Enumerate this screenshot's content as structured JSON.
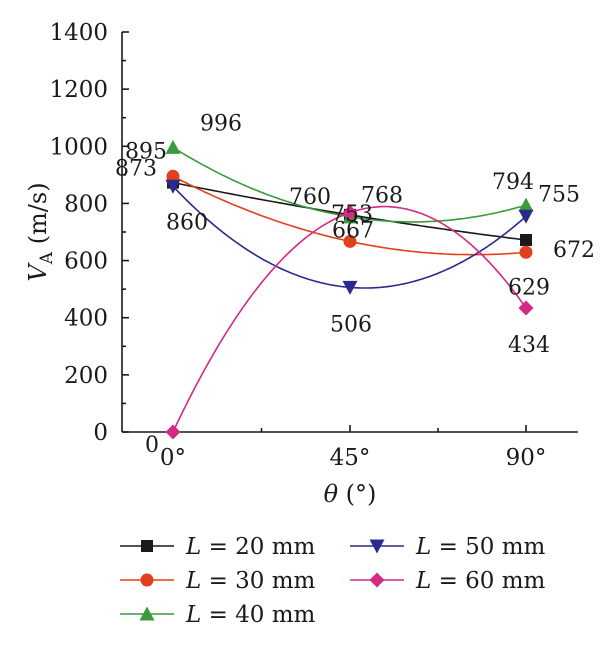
{
  "chart_data": {
    "type": "line",
    "categories": [
      "0°",
      "45°",
      "90°"
    ],
    "xlabel": "θ (°)",
    "xlabel_var": "θ",
    "xlabel_unit": " (°)",
    "ylabel": "VA (m/s)",
    "ylabel_var": "V",
    "ylabel_sub": "A",
    "ylabel_unit": " (m/s)",
    "ylim": [
      0,
      1400
    ],
    "yticks": [
      0,
      200,
      400,
      600,
      800,
      1000,
      1200,
      1400
    ],
    "smooth": true,
    "legend_position": "bottom",
    "series": [
      {
        "name": "L = 20 mm",
        "var": "L",
        "rest": " = 20 mm",
        "values": [
          873,
          760,
          672
        ],
        "color": "#1a1a1a",
        "marker": "square",
        "labels": [
          "873",
          "760",
          "672"
        ]
      },
      {
        "name": "L = 30 mm",
        "var": "L",
        "rest": " = 30 mm",
        "values": [
          895,
          667,
          629
        ],
        "color": "#e2401c",
        "marker": "circle",
        "labels": [
          "895",
          "667",
          "629"
        ]
      },
      {
        "name": "L = 40 mm",
        "var": "L",
        "rest": " = 40 mm",
        "values": [
          996,
          753,
          794
        ],
        "color": "#3a9a3c",
        "marker": "triangle-up",
        "labels": [
          "996",
          "753",
          "794"
        ]
      },
      {
        "name": "L = 50 mm",
        "var": "L",
        "rest": " = 50 mm",
        "values": [
          860,
          506,
          755
        ],
        "color": "#2a2a8c",
        "marker": "triangle-down",
        "labels": [
          "860",
          "506",
          "755"
        ]
      },
      {
        "name": "L = 60 mm",
        "var": "L",
        "rest": " = 60 mm",
        "values": [
          0,
          768,
          434
        ],
        "color": "#d42a86",
        "marker": "diamond",
        "labels": [
          "0",
          "768",
          "434"
        ]
      }
    ]
  }
}
